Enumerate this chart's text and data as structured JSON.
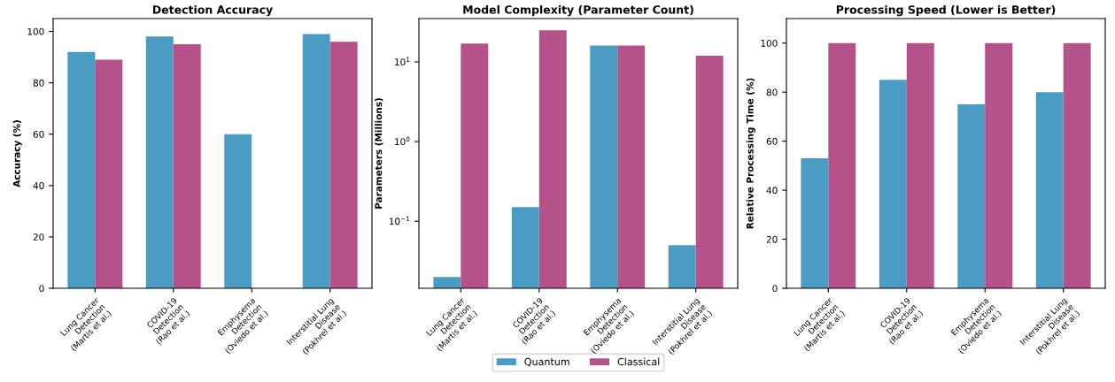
{
  "chart_data": [
    {
      "type": "bar",
      "title": "Detection Accuracy",
      "ylabel": "Accuracy (%)",
      "categories": [
        "Lung Cancer\nDetection\n(Martis et al.)",
        "COVID-19\nDetection\n(Rao et al.)",
        "Emphysema\nDetection\n(Oviedo et al.)",
        "Interstitial Lung\nDisease\n(Pokhrel et al.)"
      ],
      "series": [
        {
          "color": "#4a9cc2",
          "values": [
            92,
            98,
            60,
            99
          ]
        },
        {
          "color": "#b5528a",
          "values": [
            89,
            95,
            null,
            96
          ]
        }
      ],
      "ylim": [
        0,
        105
      ],
      "yticks": [
        0,
        20,
        40,
        60,
        80,
        100
      ],
      "grid": false
    },
    {
      "type": "bar",
      "title": "Model Complexity (Parameter Count)",
      "ylabel": "Parameters (Millions)",
      "categories": [
        "Lung Cancer\nDetection\n(Martis et al.)",
        "COVID-19\nDetection\n(Rao et al.)",
        "Emphysema\nDetection\n(Oviedo et al.)",
        "Interstitial Lung\nDisease\n(Pokhrel et al.)"
      ],
      "series": [
        {
          "name": "Quantum",
          "color": "#4a9cc2",
          "values": [
            0.02,
            0.15,
            16,
            0.05
          ]
        },
        {
          "name": "Classical",
          "color": "#b5528a",
          "values": [
            17,
            25,
            16,
            12
          ]
        }
      ],
      "log": "y",
      "ylim": [
        0.0144,
        35
      ],
      "yticks": [
        {
          "value": 0.1,
          "label": "10$^{−1}$"
        },
        {
          "value": 1,
          "label": "10$^{0}$"
        },
        {
          "value": 10,
          "label": "10$^{1}$"
        }
      ],
      "grid": false,
      "legend": "bottom"
    },
    {
      "type": "bar",
      "title": "Processing Speed (Lower is Better)",
      "ylabel": "Relative Processing Time (%)",
      "categories": [
        "Lung Cancer\nDetection\n(Martis et al.)",
        "COVID-19\nDetection\n(Rao et al.)",
        "Emphysema\nDetection\n(Oviedo et al.)",
        "Interstitial Lung\nDisease\n(Pokhrel et al.)"
      ],
      "series": [
        {
          "color": "#4a9cc2",
          "values": [
            53,
            85,
            75,
            80
          ]
        },
        {
          "color": "#b5528a",
          "values": [
            100,
            100,
            100,
            100
          ]
        }
      ],
      "ylim": [
        0,
        110
      ],
      "yticks": [
        0,
        20,
        40,
        60,
        80,
        100
      ],
      "grid": false
    }
  ]
}
